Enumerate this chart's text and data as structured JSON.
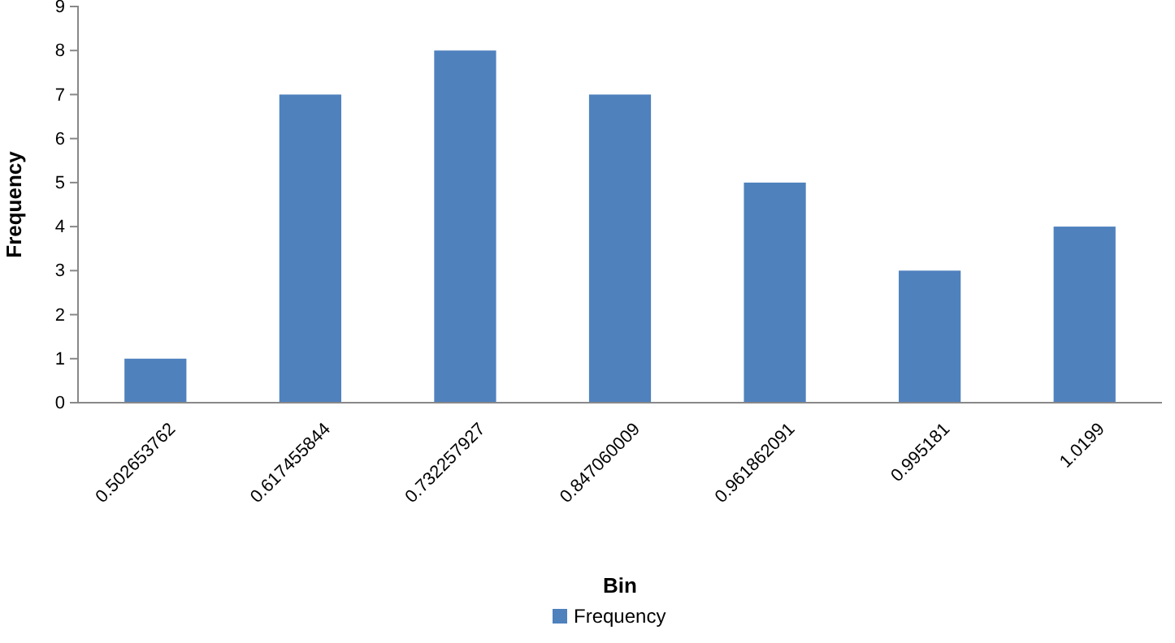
{
  "chart_data": {
    "type": "bar",
    "xlabel": "Bin",
    "ylabel": "Frequency",
    "categories": [
      "0.502653762",
      "0.617455844",
      "0.732257927",
      "0.847060009",
      "0.961862091",
      "0.995181",
      "1.0199"
    ],
    "series": [
      {
        "name": "Frequency",
        "color": "#4f81bd",
        "values": [
          1,
          7,
          8,
          7,
          5,
          3,
          4
        ]
      }
    ],
    "ylim": [
      0,
      9
    ],
    "yticks": [
      0,
      1,
      2,
      3,
      4,
      5,
      6,
      7,
      8,
      9
    ],
    "grid": false,
    "legend": "bottom"
  }
}
